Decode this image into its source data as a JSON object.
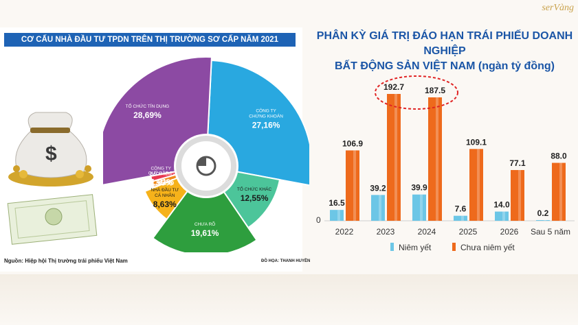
{
  "brand": "serVàng",
  "left": {
    "title": "CƠ CẤU NHÀ ĐẦU TƯ TPDN TRÊN THỊ TRƯỜNG SƠ CẤP NĂM 2021",
    "source": "Nguồn: Hiệp hội Thị trường trái phiếu Việt Nam",
    "credit": "ĐỒ HỌA: THANH HUYỀN"
  },
  "right": {
    "title_line1": "PHÂN KỲ GIÁ TRỊ ĐÁO HẠN TRÁI PHIẾU DOANH NGHIỆP",
    "title_line2": "BẤT ĐỘNG SẢN VIỆT NAM (ngàn tỷ đồng)"
  },
  "chart_data": [
    {
      "type": "pie",
      "title": "CƠ CẤU NHÀ ĐẦU TƯ TPDN TRÊN THỊ TRƯỜNG SƠ CẤP NĂM 2021",
      "slices": [
        {
          "label_line1": "CÔNG TY",
          "label_line2": "CHỨNG KHOÁN",
          "value": 27.16,
          "value_label": "27,16%",
          "color": "#29a8e0"
        },
        {
          "label_line1": "TỔ CHỨC KHÁC",
          "label_line2": "",
          "value": 12.55,
          "value_label": "12,55%",
          "color": "#4cc59a"
        },
        {
          "label_line1": "CHƯA RÕ",
          "label_line2": "",
          "value": 19.61,
          "value_label": "19,61%",
          "color": "#2e9e3e"
        },
        {
          "label_line1": "NHÀ ĐẦU TƯ",
          "label_line2": "CÁ NHÂN",
          "value": 8.63,
          "value_label": "8,63%",
          "color": "#f6b21a"
        },
        {
          "label_line1": "QUỸ ĐẦU TƯ",
          "label_line2": "",
          "value": 1.81,
          "value_label": "1,81%",
          "color": "#f08a1e"
        },
        {
          "label_line1": "CÔNG TY",
          "label_line2": "BẢO HIỂM",
          "value": 1.55,
          "value_label": "1,55%",
          "color": "#e8384f"
        },
        {
          "label_line1": "TỔ CHỨC TÍN DỤNG",
          "label_line2": "",
          "value": 28.69,
          "value_label": "28,69%",
          "color": "#8c4aa3"
        }
      ]
    },
    {
      "type": "bar",
      "title": "PHÂN KỲ GIÁ TRỊ ĐÁO HẠN TRÁI PHIẾU DOANH NGHIỆP BẤT ĐỘNG SẢN VIỆT NAM (ngàn tỷ đồng)",
      "categories": [
        "2022",
        "2023",
        "2024",
        "2025",
        "2026",
        "Sau 5 năm"
      ],
      "series": [
        {
          "name": "Niêm yết",
          "values": [
            16.5,
            39.2,
            39.9,
            7.6,
            14.0,
            0.2
          ],
          "labels": [
            "16.5",
            "39.2",
            "39.9",
            "7.6",
            "14.0",
            "0.2"
          ],
          "color": "#6cc6e6"
        },
        {
          "name": "Chưa niêm yết",
          "values": [
            106.9,
            192.7,
            187.5,
            109.1,
            77.1,
            88.0
          ],
          "labels": [
            "106.9",
            "192.7",
            "187.5",
            "109.1",
            "77.1",
            "88.0"
          ],
          "color": "#ee6a1c"
        }
      ],
      "yaxis_tick": "0",
      "ylim": [
        0,
        200
      ],
      "highlight_categories": [
        "2023",
        "2024"
      ]
    }
  ]
}
